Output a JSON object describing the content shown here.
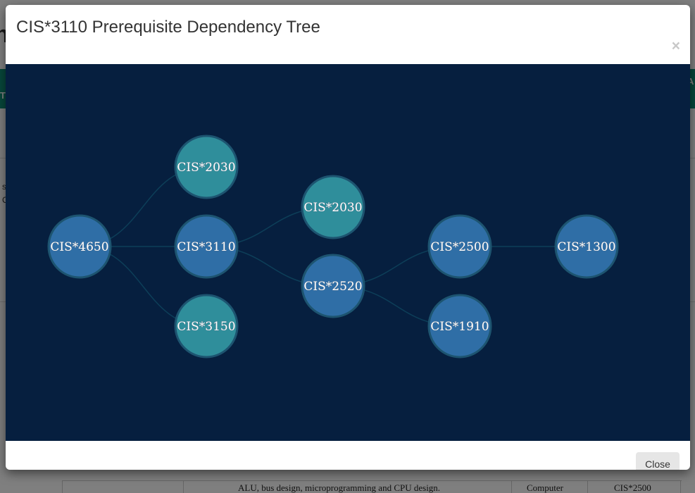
{
  "modal": {
    "title": "CIS*3110 Prerequisite Dependency Tree",
    "close_icon": "×",
    "close_button_label": "Close"
  },
  "colors": {
    "graph_background": "#061f3f",
    "node_blue": "#2f6ea6",
    "node_teal": "#2f8e9b",
    "node_border": "#1d5470",
    "edge": "#0d3e58"
  },
  "graph": {
    "nodes": [
      {
        "id": "n4650",
        "label": "CIS*4650",
        "color": "blue"
      },
      {
        "id": "n2030a",
        "label": "CIS*2030",
        "color": "teal"
      },
      {
        "id": "n3110",
        "label": "CIS*3110",
        "color": "blue"
      },
      {
        "id": "n3150",
        "label": "CIS*3150",
        "color": "teal"
      },
      {
        "id": "n2030b",
        "label": "CIS*2030",
        "color": "teal"
      },
      {
        "id": "n2520",
        "label": "CIS*2520",
        "color": "blue"
      },
      {
        "id": "n2500",
        "label": "CIS*2500",
        "color": "blue"
      },
      {
        "id": "n1910",
        "label": "CIS*1910",
        "color": "blue"
      },
      {
        "id": "n1300",
        "label": "CIS*1300",
        "color": "blue"
      }
    ],
    "edges": [
      [
        "n4650",
        "n2030a"
      ],
      [
        "n4650",
        "n3110"
      ],
      [
        "n4650",
        "n3150"
      ],
      [
        "n3110",
        "n2030b"
      ],
      [
        "n3110",
        "n2520"
      ],
      [
        "n2520",
        "n2500"
      ],
      [
        "n2520",
        "n1910"
      ],
      [
        "n2500",
        "n1300"
      ]
    ]
  },
  "background_page": {
    "heading_fragment": "h",
    "left_fragments": [
      "s",
      "C"
    ],
    "right_fragment": "A",
    "teal_left_fragment": "T",
    "table_row": {
      "description": "ALU, bus design, microprogramming and CPU design.",
      "department": "Computer",
      "prerequisite": "CIS*2500"
    }
  }
}
